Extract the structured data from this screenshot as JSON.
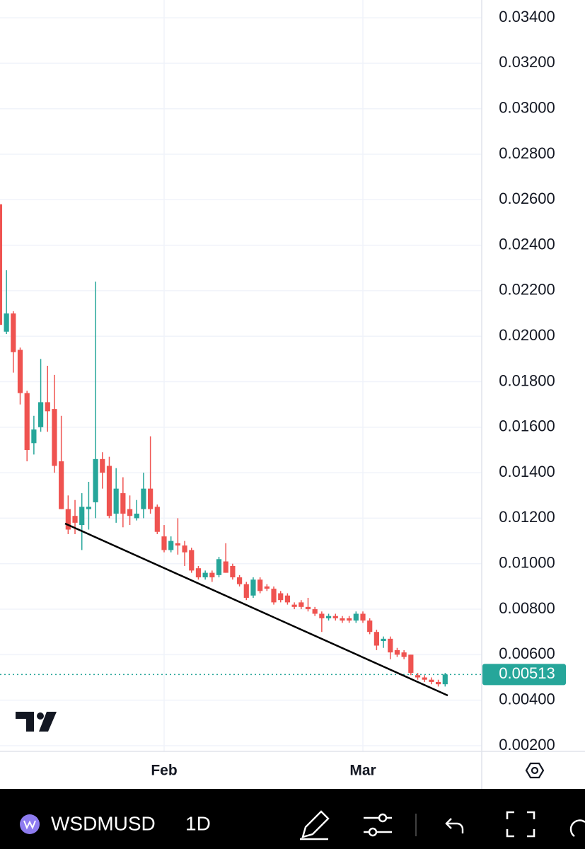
{
  "chart_data": {
    "type": "candlestick",
    "symbol": "WSDMUSD",
    "interval": "1D",
    "categories": [
      null,
      null,
      null,
      null,
      null,
      null,
      null,
      null,
      null,
      null,
      null,
      null,
      null,
      null,
      null,
      null,
      null,
      null,
      null,
      null,
      null,
      null,
      null,
      null,
      "Feb",
      null,
      null,
      null,
      null,
      null,
      null,
      null,
      null,
      null,
      null,
      null,
      null,
      null,
      null,
      null,
      null,
      null,
      null,
      null,
      null,
      null,
      null,
      null,
      null,
      null,
      null,
      null,
      null,
      "Mar",
      null,
      null,
      null,
      null,
      null,
      null,
      null,
      null,
      null,
      null,
      null,
      null
    ],
    "open": [
      0.0258,
      0.0202,
      0.021,
      0.0194,
      0.0175,
      0.0153,
      0.016,
      0.0171,
      0.0168,
      0.0145,
      0.0124,
      0.0121,
      0.0117,
      0.0124,
      0.0127,
      0.0146,
      0.0143,
      0.0122,
      0.0131,
      0.0124,
      0.012,
      0.0124,
      0.0133,
      0.0125,
      0.0112,
      0.0106,
      0.0109,
      0.0108,
      0.0106,
      0.0098,
      0.0094,
      0.0096,
      0.0095,
      0.0101,
      0.0099,
      0.0094,
      0.0091,
      0.0086,
      0.0093,
      0.009,
      0.0089,
      0.0087,
      0.0086,
      0.0082,
      0.0083,
      0.0081,
      0.008,
      0.0078,
      0.0076,
      0.0077,
      0.0076,
      0.0076,
      0.0075,
      0.0078,
      0.0075,
      0.007,
      0.0066,
      0.0067,
      0.0062,
      0.0061,
      0.006,
      0.0051,
      0.005,
      0.0049,
      0.0048,
      0.0047
    ],
    "high": [
      0.0258,
      0.0229,
      0.0211,
      0.0195,
      0.0176,
      0.0165,
      0.019,
      0.0187,
      0.0183,
      0.0165,
      0.013,
      0.0128,
      0.0131,
      0.0136,
      0.0224,
      0.0149,
      0.0147,
      0.0142,
      0.0138,
      0.013,
      0.0128,
      0.014,
      0.0156,
      0.0126,
      0.0117,
      0.0112,
      0.012,
      0.011,
      0.0107,
      0.0099,
      0.0097,
      0.0097,
      0.0103,
      0.0109,
      0.01,
      0.0095,
      0.0092,
      0.0094,
      0.0094,
      0.0091,
      0.009,
      0.0088,
      0.0087,
      0.0083,
      0.0084,
      0.0085,
      0.0081,
      0.0079,
      0.0078,
      0.0078,
      0.0077,
      0.0077,
      0.0079,
      0.0079,
      0.0076,
      0.0071,
      0.0068,
      0.0068,
      0.0063,
      0.0062,
      0.006,
      0.0052,
      0.0051,
      0.005,
      0.0049,
      0.0052
    ],
    "low": [
      0.0205,
      0.0201,
      0.0184,
      0.017,
      0.0145,
      0.0148,
      0.0158,
      0.0158,
      0.014,
      0.0124,
      0.0113,
      0.0113,
      0.0106,
      0.0115,
      0.012,
      0.0133,
      0.012,
      0.0118,
      0.0116,
      0.0117,
      0.0119,
      0.012,
      0.0122,
      0.0113,
      0.0105,
      0.0105,
      0.0104,
      0.0099,
      0.0096,
      0.0093,
      0.0093,
      0.0092,
      0.0094,
      0.0096,
      0.0093,
      0.009,
      0.0084,
      0.0085,
      0.0087,
      0.0088,
      0.0082,
      0.0083,
      0.0082,
      0.008,
      0.008,
      0.0079,
      0.0077,
      0.007,
      0.0075,
      0.0075,
      0.0074,
      0.0074,
      0.0074,
      0.0074,
      0.0069,
      0.0062,
      0.0063,
      0.0058,
      0.0059,
      0.0058,
      0.0051,
      0.0049,
      0.0048,
      0.0047,
      0.0046,
      0.0046
    ],
    "close": [
      0.0205,
      0.021,
      0.0193,
      0.0175,
      0.015,
      0.0159,
      0.0171,
      0.0167,
      0.0143,
      0.0124,
      0.0115,
      0.0118,
      0.0125,
      0.0125,
      0.0146,
      0.014,
      0.0121,
      0.0133,
      0.0122,
      0.0121,
      0.0122,
      0.0133,
      0.0124,
      0.0114,
      0.0106,
      0.011,
      0.0108,
      0.0105,
      0.0097,
      0.0094,
      0.0096,
      0.0094,
      0.0102,
      0.0096,
      0.0094,
      0.0091,
      0.0085,
      0.0093,
      0.0088,
      0.0089,
      0.0083,
      0.0084,
      0.0083,
      0.0081,
      0.0081,
      0.008,
      0.0078,
      0.0076,
      0.0077,
      0.0076,
      0.0075,
      0.0075,
      0.0078,
      0.0075,
      0.007,
      0.0064,
      0.0067,
      0.0061,
      0.006,
      0.0059,
      0.0052,
      0.005,
      0.0049,
      0.0048,
      0.0047,
      0.00513
    ],
    "up_color": "#26a69a",
    "down_color": "#ef5350",
    "last_price": {
      "value": 0.00513,
      "label": "0.00513"
    },
    "ylim": [
      0.00175,
      0.03478
    ],
    "yticks": [
      {
        "value": 0.002,
        "label": "0.00200"
      },
      {
        "value": 0.004,
        "label": "0.00400"
      },
      {
        "value": 0.006,
        "label": "0.00600"
      },
      {
        "value": 0.008,
        "label": "0.00800"
      },
      {
        "value": 0.01,
        "label": "0.01000"
      },
      {
        "value": 0.012,
        "label": "0.01200"
      },
      {
        "value": 0.014,
        "label": "0.01400"
      },
      {
        "value": 0.016,
        "label": "0.01600"
      },
      {
        "value": 0.018,
        "label": "0.01800"
      },
      {
        "value": 0.02,
        "label": "0.02000"
      },
      {
        "value": 0.022,
        "label": "0.02200"
      },
      {
        "value": 0.024,
        "label": "0.02400"
      },
      {
        "value": 0.026,
        "label": "0.02600"
      },
      {
        "value": 0.028,
        "label": "0.02800"
      },
      {
        "value": 0.03,
        "label": "0.03000"
      },
      {
        "value": 0.032,
        "label": "0.03200"
      },
      {
        "value": 0.034,
        "label": "0.03400"
      }
    ],
    "grid": true
  }
}
